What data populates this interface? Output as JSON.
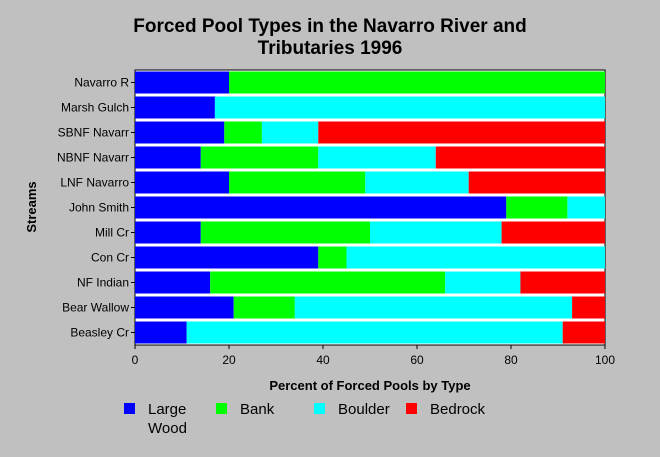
{
  "chart_data": {
    "type": "bar",
    "orientation": "horizontal",
    "stacked": true,
    "title": [
      "Forced Pool Types in the Navarro River and",
      "Tributaries 1996"
    ],
    "xlabel": "Percent of Forced Pools by Type",
    "ylabel": "Streams",
    "xlim": [
      0,
      100
    ],
    "xticks": [
      "0",
      "20",
      "40",
      "60",
      "80",
      "100"
    ],
    "grid": false,
    "legend_position": "bottom",
    "categories": [
      "Navarro R",
      "Marsh Gulch",
      "SBNF Navarr",
      "NBNF Navarr",
      "LNF Navarro",
      "John Smith",
      "Mill Cr",
      "Con Cr",
      "NF Indian",
      "Bear Wallow",
      "Beasley Cr"
    ],
    "series": [
      {
        "name": "Large Wood",
        "legend_label": "Large\nWood",
        "color": "#0000ff",
        "values": [
          20,
          17,
          19,
          14,
          20,
          79,
          14,
          39,
          16,
          21,
          11
        ]
      },
      {
        "name": "Bank",
        "legend_label": "Bank",
        "color": "#00ff00",
        "values": [
          80,
          0,
          8,
          25,
          29,
          13,
          36,
          6,
          50,
          13,
          0
        ]
      },
      {
        "name": "Boulder",
        "legend_label": "Boulder",
        "color": "#00ffff",
        "values": [
          0,
          83,
          12,
          25,
          22,
          8,
          28,
          55,
          16,
          59,
          80
        ]
      },
      {
        "name": "Bedrock",
        "legend_label": "Bedrock",
        "color": "#ff0000",
        "values": [
          0,
          0,
          61,
          36,
          29,
          0,
          22,
          0,
          18,
          7,
          9
        ]
      }
    ]
  }
}
